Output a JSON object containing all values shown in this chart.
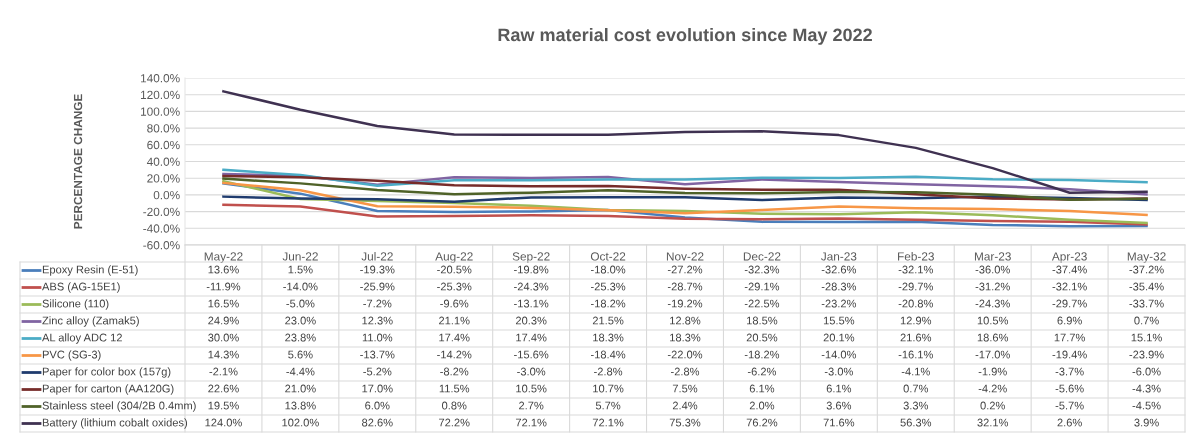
{
  "chart_data": {
    "type": "line",
    "title": "Raw material cost evolution since May 2022",
    "ylabel": "PERCENTAGE CHANGE",
    "categories": [
      "May-22",
      "Jun-22",
      "Jul-22",
      "Aug-22",
      "Sep-22",
      "Oct-22",
      "Nov-22",
      "Dec-22",
      "Jan-23",
      "Feb-23",
      "Mar-23",
      "Apr-23",
      "May-32"
    ],
    "ylim": [
      -60,
      140
    ],
    "yticks": [
      {
        "value": -60,
        "label": "-60.0%"
      },
      {
        "value": -40,
        "label": "-40.0%"
      },
      {
        "value": -20,
        "label": "-20.0%"
      },
      {
        "value": 0,
        "label": "0.0%"
      },
      {
        "value": 20,
        "label": "20.0%"
      },
      {
        "value": 40,
        "label": "40.0%"
      },
      {
        "value": 60,
        "label": "60.0%"
      },
      {
        "value": 80,
        "label": "80.0%"
      },
      {
        "value": 100,
        "label": "100.0%"
      },
      {
        "value": 120,
        "label": "120.0%"
      },
      {
        "value": 140,
        "label": "140.0%"
      }
    ],
    "grid": "y",
    "legend": "bottom",
    "marker": "none",
    "line_style": "solid",
    "series": [
      {
        "name": "Epoxy Resin (E-51)",
        "color": "#4a7ebb",
        "values": [
          13.6,
          1.5,
          -19.3,
          -20.5,
          -19.8,
          -18.0,
          -27.2,
          -32.3,
          -32.6,
          -32.1,
          -36.0,
          -37.4,
          -37.2
        ],
        "value_labels": [
          "13.6%",
          "1.5%",
          "-19.3%",
          "-20.5%",
          "-19.8%",
          "-18.0%",
          "-27.2%",
          "-32.3%",
          "-32.6%",
          "-32.1%",
          "-36.0%",
          "-37.4%",
          "-37.2%"
        ]
      },
      {
        "name": "ABS (AG-15E1)",
        "color": "#c0504d",
        "values": [
          -11.9,
          -14.0,
          -25.9,
          -25.3,
          -24.3,
          -25.3,
          -28.7,
          -29.1,
          -28.3,
          -29.7,
          -31.2,
          -32.1,
          -35.4
        ],
        "value_labels": [
          "-11.9%",
          "-14.0%",
          "-25.9%",
          "-25.3%",
          "-24.3%",
          "-25.3%",
          "-28.7%",
          "-29.1%",
          "-28.3%",
          "-29.7%",
          "-31.2%",
          "-32.1%",
          "-35.4%"
        ]
      },
      {
        "name": "Silicone (110)",
        "color": "#9bbb59",
        "values": [
          16.5,
          -5.0,
          -7.2,
          -9.6,
          -13.1,
          -18.2,
          -19.2,
          -22.5,
          -23.2,
          -20.8,
          -24.3,
          -29.7,
          -33.7
        ],
        "value_labels": [
          "16.5%",
          "-5.0%",
          "-7.2%",
          "-9.6%",
          "-13.1%",
          "-18.2%",
          "-19.2%",
          "-22.5%",
          "-23.2%",
          "-20.8%",
          "-24.3%",
          "-29.7%",
          "-33.7%"
        ]
      },
      {
        "name": "Zinc alloy (Zamak5)",
        "color": "#8064a2",
        "values": [
          24.9,
          23.0,
          12.3,
          21.1,
          20.3,
          21.5,
          12.8,
          18.5,
          15.5,
          12.9,
          10.5,
          6.9,
          0.7
        ],
        "value_labels": [
          "24.9%",
          "23.0%",
          "12.3%",
          "21.1%",
          "20.3%",
          "21.5%",
          "12.8%",
          "18.5%",
          "15.5%",
          "12.9%",
          "10.5%",
          "6.9%",
          "0.7%"
        ]
      },
      {
        "name": "AL alloy ADC 12",
        "color": "#4bacc6",
        "values": [
          30.0,
          23.8,
          11.0,
          17.4,
          17.4,
          18.3,
          18.3,
          20.5,
          20.1,
          21.6,
          18.6,
          17.7,
          15.1
        ],
        "value_labels": [
          "30.0%",
          "23.8%",
          "11.0%",
          "17.4%",
          "17.4%",
          "18.3%",
          "18.3%",
          "20.5%",
          "20.1%",
          "21.6%",
          "18.6%",
          "17.7%",
          "15.1%"
        ]
      },
      {
        "name": "PVC (SG-3)",
        "color": "#f79646",
        "values": [
          14.3,
          5.6,
          -13.7,
          -14.2,
          -15.6,
          -18.4,
          -22.0,
          -18.2,
          -14.0,
          -16.1,
          -17.0,
          -19.4,
          -23.9
        ],
        "value_labels": [
          "14.3%",
          "5.6%",
          "-13.7%",
          "-14.2%",
          "-15.6%",
          "-18.4%",
          "-22.0%",
          "-18.2%",
          "-14.0%",
          "-16.1%",
          "-17.0%",
          "-19.4%",
          "-23.9%"
        ]
      },
      {
        "name": "Paper for color box (157g)",
        "color": "#1f3b6e",
        "values": [
          -2.1,
          -4.4,
          -5.2,
          -8.2,
          -3.0,
          -2.8,
          -2.8,
          -6.2,
          -3.0,
          -4.1,
          -1.9,
          -3.7,
          -6.0
        ],
        "value_labels": [
          "-2.1%",
          "-4.4%",
          "-5.2%",
          "-8.2%",
          "-3.0%",
          "-2.8%",
          "-2.8%",
          "-6.2%",
          "-3.0%",
          "-4.1%",
          "-1.9%",
          "-3.7%",
          "-6.0%"
        ]
      },
      {
        "name": "Paper for carton (AA120G)",
        "color": "#772c2a",
        "values": [
          22.6,
          21.0,
          17.0,
          11.5,
          10.5,
          10.7,
          7.5,
          6.1,
          6.1,
          0.7,
          -4.2,
          -5.6,
          -4.3
        ],
        "value_labels": [
          "22.6%",
          "21.0%",
          "17.0%",
          "11.5%",
          "10.5%",
          "10.7%",
          "7.5%",
          "6.1%",
          "6.1%",
          "0.7%",
          "-4.2%",
          "-5.6%",
          "-4.3%"
        ]
      },
      {
        "name": "Stainless steel (304/2B 0.4mm)",
        "color": "#4f6228",
        "values": [
          19.5,
          13.8,
          6.0,
          0.8,
          2.7,
          5.7,
          2.4,
          2.0,
          3.6,
          3.3,
          0.2,
          -5.7,
          -4.5
        ],
        "value_labels": [
          "19.5%",
          "13.8%",
          "6.0%",
          "0.8%",
          "2.7%",
          "5.7%",
          "2.4%",
          "2.0%",
          "3.6%",
          "3.3%",
          "0.2%",
          "-5.7%",
          "-4.5%"
        ]
      },
      {
        "name": "Battery (lithium cobalt oxides)",
        "color": "#3f3151",
        "values": [
          124.0,
          102.0,
          82.6,
          72.2,
          72.1,
          72.1,
          75.3,
          76.2,
          71.6,
          56.3,
          32.1,
          2.6,
          3.9
        ],
        "value_labels": [
          "124.0%",
          "102.0%",
          "82.6%",
          "72.2%",
          "72.1%",
          "72.1%",
          "75.3%",
          "76.2%",
          "71.6%",
          "56.3%",
          "32.1%",
          "2.6%",
          "3.9%"
        ]
      }
    ]
  }
}
